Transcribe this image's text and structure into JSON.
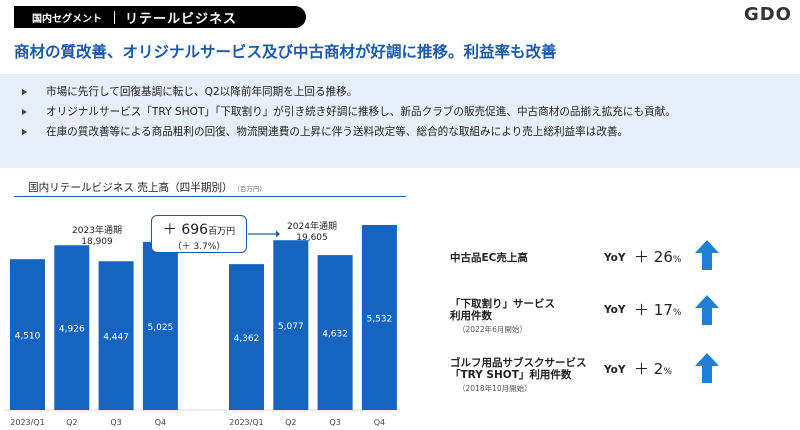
{
  "header": {
    "segment_label": "国内セグメント",
    "segment_title": "リテールビジネス",
    "logo": "GDO"
  },
  "headline": "商材の質改善、オリジナルサービス及び中古商材が好調に推移。利益率も改善",
  "bullets": [
    "市場に先行して回復基調に転じ、Q2以降前年同期を上回る推移。",
    "オリジナルサービス「TRY SHOT」「下取割り」が引き続き好調に推移し、新品クラブの販売促進、中古商材の品揃え拡充にも貢献。",
    "在庫の質改善等による商品粗利の回復、物流関連費の上昇に伴う送料改定等、総合的な取組みにより売上総利益率は改善。"
  ],
  "chart_title": "国内リテールビジネス 売上高（四半期別）",
  "chart_unit": "（百万円）",
  "annotations": {
    "y2023_label": "2023年通期",
    "y2023_total": "18,909",
    "y2024_label": "2024年通期",
    "y2024_total": "19,605",
    "diff_value": "＋ 696",
    "diff_unit": "百万円",
    "diff_pct": "（＋ 3.7%）"
  },
  "chart_data": {
    "type": "bar",
    "groups": [
      {
        "name": "2023年通期",
        "categories": [
          "2023/Q1",
          "Q2",
          "Q3",
          "Q4"
        ],
        "values": [
          4510,
          4926,
          4447,
          5025
        ]
      },
      {
        "name": "2024年通期",
        "categories": [
          "2023/Q1",
          "Q2",
          "Q3",
          "Q4"
        ],
        "values": [
          4362,
          5077,
          4632,
          5532
        ]
      }
    ],
    "bar_color": "#1565c0",
    "ylim": [
      0,
      6500
    ]
  },
  "metrics": [
    {
      "label": "中古品EC売上高",
      "sub": "",
      "yoy": "YoY",
      "sign": "＋",
      "value": "26",
      "unit": "%"
    },
    {
      "label": "「下取割り」サービス\n利用件数",
      "sub": "（2022年6月開始）",
      "yoy": "YoY",
      "sign": "＋",
      "value": "17",
      "unit": "%"
    },
    {
      "label": "ゴルフ用品サブスクサービス\n「TRY SHOT」利用件数",
      "sub": "（2018年10月開始）",
      "yoy": "YoY",
      "sign": "＋",
      "value": "2",
      "unit": "%"
    }
  ],
  "arrow_color": "#1e7fd6"
}
